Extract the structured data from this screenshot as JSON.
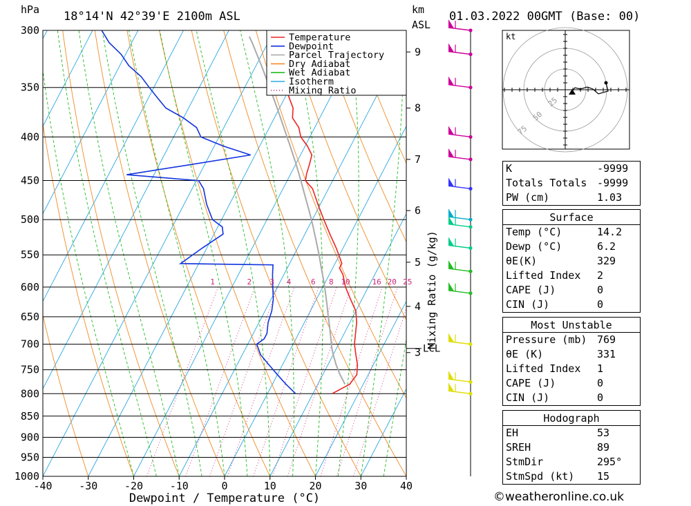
{
  "header": {
    "location": "18°14'N  42°39'E  2100m  ASL",
    "datetime": "01.03.2022  00GMT  (Base: 00)",
    "pressure_unit": "hPa",
    "height_unit_1": "km",
    "height_unit_2": "ASL"
  },
  "chart_data": {
    "type": "line",
    "subtype": "skew-T log-P sounding",
    "xlabel": "Dewpoint / Temperature (°C)",
    "ylabel": "hPa",
    "x_ticks": [
      -40,
      -30,
      -20,
      -10,
      0,
      10,
      20,
      30,
      40
    ],
    "y_ticks": [
      300,
      350,
      400,
      450,
      500,
      550,
      600,
      650,
      700,
      750,
      800,
      850,
      900,
      950,
      1000
    ],
    "xlim": [
      -40,
      40
    ],
    "ylim": [
      1000,
      300
    ],
    "y_scale": "log",
    "right_axis_label": "Mixing Ratio (g/kg)",
    "km_ticks": [
      {
        "label": "9",
        "p": 318
      },
      {
        "label": "8",
        "p": 370
      },
      {
        "label": "7",
        "p": 425
      },
      {
        "label": "6",
        "p": 488
      },
      {
        "label": "5",
        "p": 561
      },
      {
        "label": "4",
        "p": 632
      },
      {
        "label": "3",
        "p": 716
      }
    ],
    "lcl_label": "LCL",
    "lcl_p": 708,
    "mixing_ratio_labels": [
      "1",
      "2",
      "3",
      "4",
      "6",
      "8",
      "10",
      "16",
      "20",
      "25"
    ],
    "legend": [
      "Temperature",
      "Dewpoint",
      "Parcel Trajectory",
      "Dry Adiabat",
      "Wet Adiabat",
      "Isotherm",
      "Mixing Ratio"
    ],
    "legend_position": "top-right",
    "series": [
      {
        "name": "Temperature",
        "color": "#ee2222",
        "points": [
          [
            800,
            14.2
          ],
          [
            780,
            17
          ],
          [
            760,
            17.5
          ],
          [
            740,
            16.5
          ],
          [
            720,
            15
          ],
          [
            700,
            13.5
          ],
          [
            680,
            12.5
          ],
          [
            660,
            11.5
          ],
          [
            640,
            10
          ],
          [
            620,
            7.5
          ],
          [
            600,
            5
          ],
          [
            580,
            3
          ],
          [
            570,
            1.5
          ],
          [
            563,
            1.5
          ],
          [
            555,
            0.5
          ],
          [
            540,
            -1.5
          ],
          [
            520,
            -4.5
          ],
          [
            500,
            -7.5
          ],
          [
            480,
            -10.5
          ],
          [
            460,
            -13.5
          ],
          [
            450,
            -16
          ],
          [
            442,
            -16.5
          ],
          [
            430,
            -17
          ],
          [
            420,
            -17.5
          ],
          [
            410,
            -19.5
          ],
          [
            400,
            -22
          ],
          [
            390,
            -23.5
          ],
          [
            380,
            -26
          ],
          [
            370,
            -27
          ],
          [
            360,
            -29
          ],
          [
            350,
            -31
          ],
          [
            340,
            -33
          ],
          [
            330,
            -35
          ],
          [
            320,
            -37
          ],
          [
            310,
            -39
          ],
          [
            300,
            -41
          ]
        ]
      },
      {
        "name": "Dewpoint",
        "color": "#1133dd",
        "points": [
          [
            800,
            6.2
          ],
          [
            780,
            3
          ],
          [
            760,
            0
          ],
          [
            740,
            -3
          ],
          [
            720,
            -6
          ],
          [
            700,
            -8
          ],
          [
            690,
            -7
          ],
          [
            680,
            -7
          ],
          [
            660,
            -8
          ],
          [
            640,
            -8.5
          ],
          [
            620,
            -9.5
          ],
          [
            600,
            -11
          ],
          [
            580,
            -12.5
          ],
          [
            565,
            -13.5
          ],
          [
            563,
            -34
          ],
          [
            540,
            -31
          ],
          [
            520,
            -28
          ],
          [
            510,
            -29
          ],
          [
            500,
            -32
          ],
          [
            480,
            -35
          ],
          [
            460,
            -37.5
          ],
          [
            450,
            -39.5
          ],
          [
            443,
            -56
          ],
          [
            430,
            -42
          ],
          [
            420,
            -31
          ],
          [
            410,
            -38
          ],
          [
            400,
            -44
          ],
          [
            390,
            -46
          ],
          [
            380,
            -50
          ],
          [
            370,
            -55
          ],
          [
            360,
            -58
          ],
          [
            350,
            -61
          ],
          [
            340,
            -64
          ],
          [
            330,
            -68
          ],
          [
            320,
            -71
          ],
          [
            310,
            -75
          ],
          [
            300,
            -78
          ]
        ]
      },
      {
        "name": "Parcel Trajectory",
        "color": "#aaaaaa",
        "points": [
          [
            780,
            16
          ],
          [
            760,
            13.8
          ],
          [
            740,
            11.8
          ],
          [
            720,
            10
          ],
          [
            708,
            9
          ],
          [
            690,
            7.7
          ],
          [
            670,
            6.2
          ],
          [
            650,
            4.6
          ],
          [
            630,
            3
          ],
          [
            610,
            1.3
          ],
          [
            590,
            -0.5
          ],
          [
            570,
            -2.5
          ],
          [
            550,
            -4.5
          ],
          [
            530,
            -6.7
          ],
          [
            510,
            -9
          ],
          [
            490,
            -11.5
          ],
          [
            470,
            -14.2
          ],
          [
            450,
            -17
          ],
          [
            430,
            -20
          ],
          [
            410,
            -23.3
          ],
          [
            390,
            -26.8
          ],
          [
            370,
            -30.5
          ],
          [
            350,
            -34.5
          ],
          [
            330,
            -38.8
          ],
          [
            310,
            -43.5
          ],
          [
            305,
            -44.8
          ]
        ]
      }
    ]
  },
  "wind_barbs": [
    {
      "p": 300,
      "color": "#cc0099"
    },
    {
      "p": 320,
      "color": "#cc0099"
    },
    {
      "p": 350,
      "color": "#cc0099"
    },
    {
      "p": 400,
      "color": "#cc0099"
    },
    {
      "p": 425,
      "color": "#cc0099"
    },
    {
      "p": 460,
      "color": "#3333ff"
    },
    {
      "p": 500,
      "color": "#00aacc"
    },
    {
      "p": 510,
      "color": "#00cc88"
    },
    {
      "p": 540,
      "color": "#00cc88"
    },
    {
      "p": 575,
      "color": "#22bb22"
    },
    {
      "p": 610,
      "color": "#22bb22"
    },
    {
      "p": 700,
      "color": "#dddd00"
    },
    {
      "p": 775,
      "color": "#dddd00"
    },
    {
      "p": 800,
      "color": "#dddd00"
    }
  ],
  "hodograph": {
    "unit": "kt",
    "ring_labels": [
      "25",
      "50",
      "75"
    ]
  },
  "indices": {
    "general": [
      {
        "label": "K",
        "value": "-9999"
      },
      {
        "label": "Totals Totals",
        "value": "-9999"
      },
      {
        "label": "PW (cm)",
        "value": "1.03"
      }
    ],
    "surface_title": "Surface",
    "surface": [
      {
        "label": "Temp (°C)",
        "value": "14.2"
      },
      {
        "label": "Dewp (°C)",
        "value": "6.2"
      },
      {
        "label": "θE(K)",
        "value": "329"
      },
      {
        "label": "Lifted Index",
        "value": "2"
      },
      {
        "label": "CAPE (J)",
        "value": "0"
      },
      {
        "label": "CIN (J)",
        "value": "0"
      }
    ],
    "mu_title": "Most Unstable",
    "most_unstable": [
      {
        "label": "Pressure (mb)",
        "value": "769"
      },
      {
        "label": "θE (K)",
        "value": "331"
      },
      {
        "label": "Lifted Index",
        "value": "1"
      },
      {
        "label": "CAPE (J)",
        "value": "0"
      },
      {
        "label": "CIN (J)",
        "value": "0"
      }
    ],
    "hodo_title": "Hodograph",
    "hodograph": [
      {
        "label": "EH",
        "value": "53"
      },
      {
        "label": "SREH",
        "value": "89"
      },
      {
        "label": "StmDir",
        "value": "295°"
      },
      {
        "label": "StmSpd (kt)",
        "value": "15"
      }
    ]
  },
  "footer": {
    "copyright": "©weatheronline.co.uk"
  }
}
